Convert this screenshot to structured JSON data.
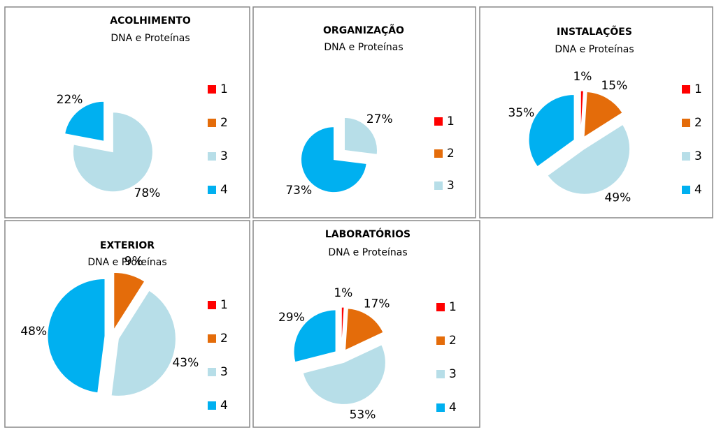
{
  "chart_data": [
    {
      "type": "pie",
      "title": "ACOLHIMENTO",
      "subtitle": "DNA e Proteínas",
      "categories": [
        "1",
        "2",
        "3",
        "4"
      ],
      "values": [
        0,
        0,
        78,
        22
      ],
      "value_labels": [
        null,
        null,
        "78%",
        "22%"
      ],
      "colors": [
        "#ff0000",
        "#e46c0a",
        "#b7dee8",
        "#00b0f0"
      ]
    },
    {
      "type": "pie",
      "title": "ORGANIZAÇÃO",
      "subtitle": "DNA e Proteínas",
      "categories": [
        "1",
        "2",
        "3",
        null
      ],
      "values": [
        0,
        0,
        27,
        73
      ],
      "value_labels": [
        null,
        null,
        "27%",
        "73%"
      ],
      "colors": [
        "#ff0000",
        "#e46c0a",
        "#b7dee8",
        "#00b0f0"
      ]
    },
    {
      "type": "pie",
      "title": "INSTALAÇÕES",
      "subtitle": "DNA e Proteínas",
      "categories": [
        "1",
        "2",
        "3",
        "4"
      ],
      "values": [
        1,
        15,
        49,
        35
      ],
      "value_labels": [
        "1%",
        "15%",
        "49%",
        "35%"
      ],
      "colors": [
        "#ff0000",
        "#e46c0a",
        "#b7dee8",
        "#00b0f0"
      ]
    },
    {
      "type": "pie",
      "title": "EXTERIOR",
      "subtitle": "DNA e Proteínas",
      "categories": [
        "1",
        "2",
        "3",
        "4"
      ],
      "values": [
        0,
        9,
        43,
        48
      ],
      "value_labels": [
        null,
        "9%",
        "43%",
        "48%"
      ],
      "colors": [
        "#ff0000",
        "#e46c0a",
        "#b7dee8",
        "#00b0f0"
      ]
    },
    {
      "type": "pie",
      "title": "LABORATÓRIOS",
      "subtitle": "DNA e Proteínas",
      "categories": [
        "1",
        "2",
        "3",
        "4"
      ],
      "values": [
        1,
        17,
        53,
        29
      ],
      "value_labels": [
        "1%",
        "17%",
        "53%",
        "29%"
      ],
      "colors": [
        "#ff0000",
        "#e46c0a",
        "#b7dee8",
        "#00b0f0"
      ]
    }
  ]
}
